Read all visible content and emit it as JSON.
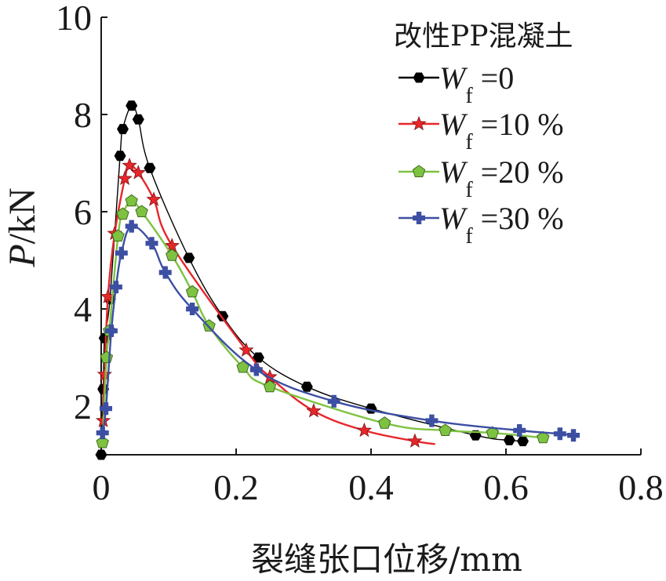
{
  "chart_data": {
    "type": "line",
    "title": "",
    "xlabel": "裂缝张口位移/mm",
    "ylabel_var": "P",
    "ylabel_unit": "/kN",
    "xlim": [
      0,
      0.8
    ],
    "ylim": [
      1,
      10
    ],
    "x_ticks": [
      "0",
      "0.2",
      "0.4",
      "0.6",
      "0.8"
    ],
    "y_ticks": [
      "2",
      "4",
      "6",
      "8",
      "10"
    ],
    "grid": false,
    "legend_title": "改性PP混凝土",
    "legend_position": "top-right",
    "series": [
      {
        "name": "Wf =0",
        "legend_var": "W",
        "legend_sub": "f",
        "legend_value": " =0",
        "color": "#000000",
        "marker": "hexagon",
        "x": [
          0,
          0.003,
          0.005,
          0.013,
          0.028,
          0.032,
          0.045,
          0.055,
          0.072,
          0.13,
          0.18,
          0.233,
          0.305,
          0.4,
          0.555,
          0.605,
          0.625
        ],
        "y": [
          1.0,
          2.35,
          3.4,
          4.2,
          7.15,
          7.7,
          8.18,
          7.9,
          6.9,
          5.05,
          3.85,
          3.0,
          2.4,
          1.95,
          1.4,
          1.3,
          1.28
        ]
      },
      {
        "name": "Wf =10 %",
        "legend_var": "W",
        "legend_sub": "f",
        "legend_value": " =10 %",
        "color": "#e8262a",
        "marker": "star",
        "x": [
          0.003,
          0.005,
          0.01,
          0.02,
          0.035,
          0.042,
          0.055,
          0.078,
          0.105,
          0.215,
          0.25,
          0.315,
          0.39,
          0.465
        ],
        "y": [
          1.7,
          2.65,
          4.25,
          5.55,
          6.68,
          6.95,
          6.8,
          6.25,
          5.3,
          3.15,
          2.6,
          1.9,
          1.5,
          1.28
        ],
        "x_line_end": 0.495,
        "y_line_end": 1.22
      },
      {
        "name": "Wf =20 %",
        "legend_var": "W",
        "legend_sub": "f",
        "legend_value": " =20 %",
        "color": "#7ec242",
        "marker": "pentagon",
        "x": [
          0.002,
          0.008,
          0.012,
          0.025,
          0.032,
          0.045,
          0.06,
          0.105,
          0.135,
          0.16,
          0.21,
          0.25,
          0.42,
          0.51,
          0.58,
          0.655
        ],
        "y": [
          1.25,
          3.0,
          3.55,
          5.5,
          5.95,
          6.22,
          6.0,
          5.1,
          4.35,
          3.65,
          2.8,
          2.4,
          1.65,
          1.5,
          1.45,
          1.35
        ]
      },
      {
        "name": "Wf =30 %",
        "legend_var": "W",
        "legend_sub": "f",
        "legend_value": " =30 %",
        "color": "#3c4fa2",
        "marker": "plus",
        "x": [
          0.002,
          0.007,
          0.015,
          0.022,
          0.03,
          0.045,
          0.075,
          0.095,
          0.135,
          0.23,
          0.345,
          0.49,
          0.62,
          0.68,
          0.7
        ],
        "y": [
          1.45,
          1.95,
          3.55,
          4.45,
          5.15,
          5.7,
          5.35,
          4.75,
          4.0,
          2.75,
          2.1,
          1.7,
          1.5,
          1.43,
          1.4
        ]
      }
    ]
  }
}
